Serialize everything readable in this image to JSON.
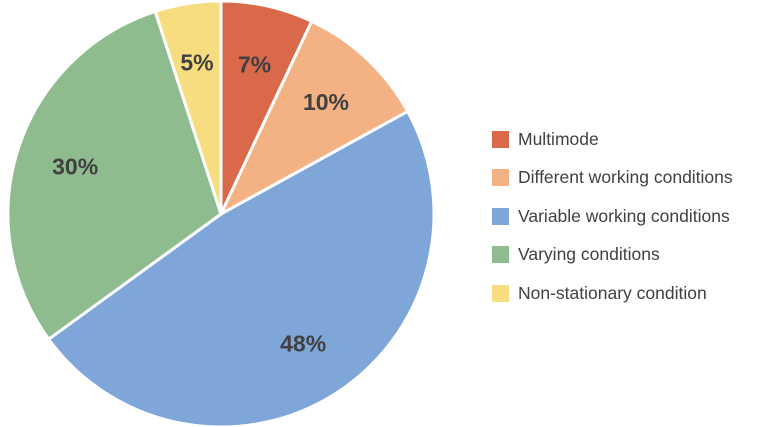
{
  "chart_data": {
    "type": "pie",
    "title": "",
    "legend_position": "right",
    "slices": [
      {
        "name": "Multimode",
        "value": 7,
        "label": "7%",
        "color": "#d9694a"
      },
      {
        "name": "Different working conditions",
        "value": 10,
        "label": "10%",
        "color": "#f4b183"
      },
      {
        "name": "Variable working conditions",
        "value": 48,
        "label": "48%",
        "color": "#7fa6d8"
      },
      {
        "name": "Varying conditions",
        "value": 30,
        "label": "30%",
        "color": "#8fbc8f"
      },
      {
        "name": "Non-stationary condition",
        "value": 5,
        "label": "5%",
        "color": "#f8dc80"
      }
    ]
  }
}
